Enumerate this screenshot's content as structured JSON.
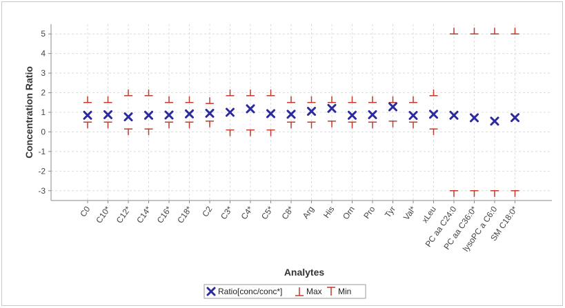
{
  "chart_data": {
    "type": "scatter",
    "title": "",
    "xlabel": "Analytes",
    "ylabel": "Concentration Ratio",
    "ylim": [
      -3.5,
      5.5
    ],
    "yticks": [
      -3,
      -2,
      -1,
      0,
      1,
      2,
      3,
      4,
      5
    ],
    "grid": true,
    "legend_position": "bottom",
    "categories": [
      "C0",
      "C10*",
      "C12*",
      "C14*",
      "C16*",
      "C18*",
      "C2",
      "C3*",
      "C4*",
      "C5*",
      "C8*",
      "Arg",
      "His",
      "Orn",
      "Pro",
      "Tyr",
      "Val*",
      "xLeu",
      "PC aa C24:0",
      "PC aa C36:0*",
      "lysoPC a C6:0",
      "SM C18:0*"
    ],
    "series": [
      {
        "name": "Ratio[conc/conc*]",
        "marker": "x",
        "color": "#2b2b9e",
        "values": [
          0.85,
          0.88,
          0.77,
          0.85,
          0.86,
          0.92,
          0.95,
          1.0,
          1.18,
          0.93,
          0.9,
          1.05,
          1.2,
          0.85,
          0.88,
          1.28,
          0.84,
          0.9,
          0.85,
          0.72,
          0.55,
          0.73
        ]
      },
      {
        "name": "Max",
        "marker": "max-bar",
        "color": "#c0392b",
        "values": [
          1.5,
          1.5,
          1.85,
          1.85,
          1.5,
          1.5,
          1.45,
          1.85,
          1.85,
          1.85,
          1.5,
          1.5,
          1.5,
          1.5,
          1.5,
          1.5,
          1.5,
          1.85,
          5.0,
          5.0,
          5.0,
          5.0
        ]
      },
      {
        "name": "Min",
        "marker": "min-bar",
        "color": "#c0392b",
        "values": [
          0.5,
          0.5,
          0.15,
          0.15,
          0.5,
          0.5,
          0.55,
          0.1,
          0.1,
          0.1,
          0.5,
          0.5,
          0.55,
          0.5,
          0.5,
          0.55,
          0.5,
          0.15,
          -3.0,
          -3.0,
          -3.0,
          -3.0
        ]
      }
    ]
  }
}
